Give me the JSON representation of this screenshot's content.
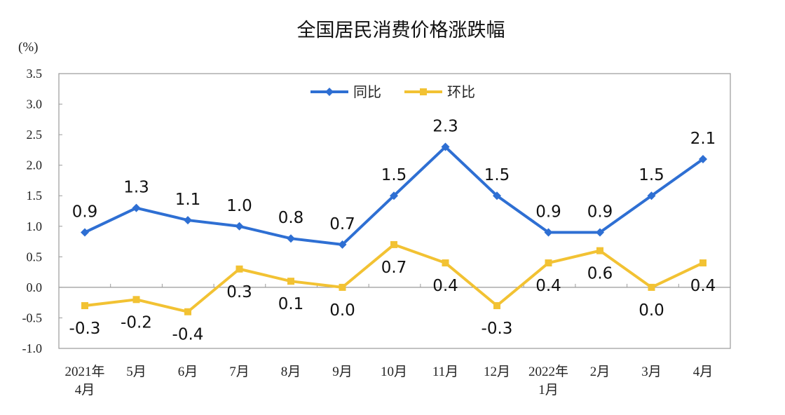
{
  "chart_data": {
    "type": "line",
    "title": "全国居民消费价格涨跌幅",
    "unit_label": "(%)",
    "x": [
      "2021年\n4月",
      "5月",
      "6月",
      "7月",
      "8月",
      "9月",
      "10月",
      "11月",
      "12月",
      "2022年\n1月",
      "2月",
      "3月",
      "4月"
    ],
    "series": [
      {
        "name": "同比",
        "color": "#2e6fd3",
        "marker": "diamond",
        "values": [
          0.9,
          1.3,
          1.1,
          1.0,
          0.8,
          0.7,
          1.5,
          2.3,
          1.5,
          0.9,
          0.9,
          1.5,
          2.1
        ]
      },
      {
        "name": "环比",
        "color": "#f2c233",
        "marker": "square",
        "values": [
          -0.3,
          -0.2,
          -0.4,
          0.3,
          0.1,
          0.0,
          0.7,
          0.4,
          -0.3,
          0.4,
          0.6,
          0.0,
          0.4
        ]
      }
    ],
    "ylim": [
      -1.0,
      3.5
    ],
    "yticks": [
      "-1.0",
      "-0.5",
      "0.0",
      "0.5",
      "1.0",
      "1.5",
      "2.0",
      "2.5",
      "3.0",
      "3.5"
    ],
    "grid": false,
    "legend_position": "top-center"
  }
}
